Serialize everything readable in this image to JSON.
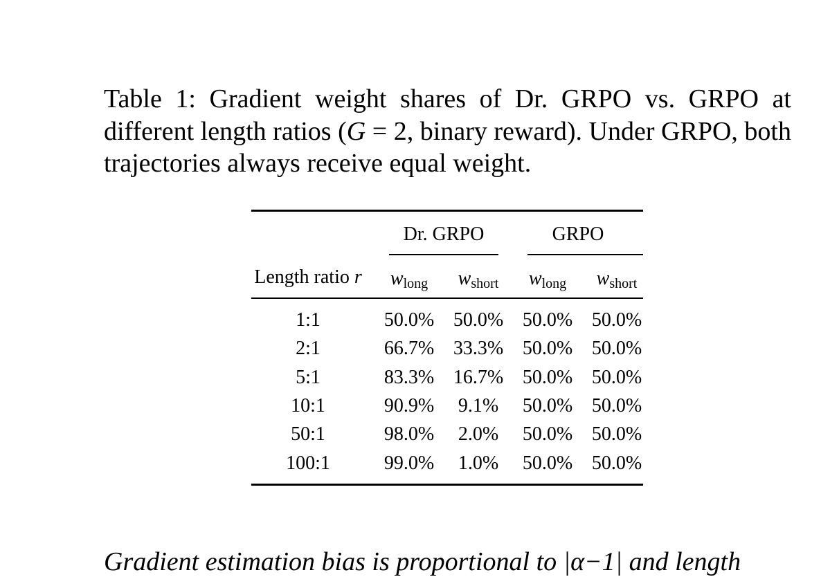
{
  "caption": {
    "parts": [
      "Table 1: Gradient weight shares of Dr. GRPO vs. GRPO at different length ratios (",
      "G",
      " = 2",
      ", binary reward). Under GRPO, both trajectories always receive equal weight."
    ]
  },
  "table": {
    "group_headers": [
      "Dr. GRPO",
      "GRPO"
    ],
    "columns": [
      {
        "text": "Length ratio",
        "symbol": "r"
      },
      {
        "symbol": "w",
        "subscript": "long"
      },
      {
        "symbol": "w",
        "subscript": "short"
      },
      {
        "symbol": "w",
        "subscript": "long"
      },
      {
        "symbol": "w",
        "subscript": "short"
      }
    ],
    "rows": [
      [
        "1:1",
        "50.0%",
        "50.0%",
        "50.0%",
        "50.0%"
      ],
      [
        "2:1",
        "66.7%",
        "33.3%",
        "50.0%",
        "50.0%"
      ],
      [
        "5:1",
        "83.3%",
        "16.7%",
        "50.0%",
        "50.0%"
      ],
      [
        "10:1",
        "90.9%",
        "9.1%",
        "50.0%",
        "50.0%"
      ],
      [
        "50:1",
        "98.0%",
        "2.0%",
        "50.0%",
        "50.0%"
      ],
      [
        "100:1",
        "99.0%",
        "1.0%",
        "50.0%",
        "50.0%"
      ]
    ]
  },
  "body": {
    "parts": [
      "Gradient estimation bias is proportional to |",
      "α",
      "−1| and length"
    ]
  }
}
